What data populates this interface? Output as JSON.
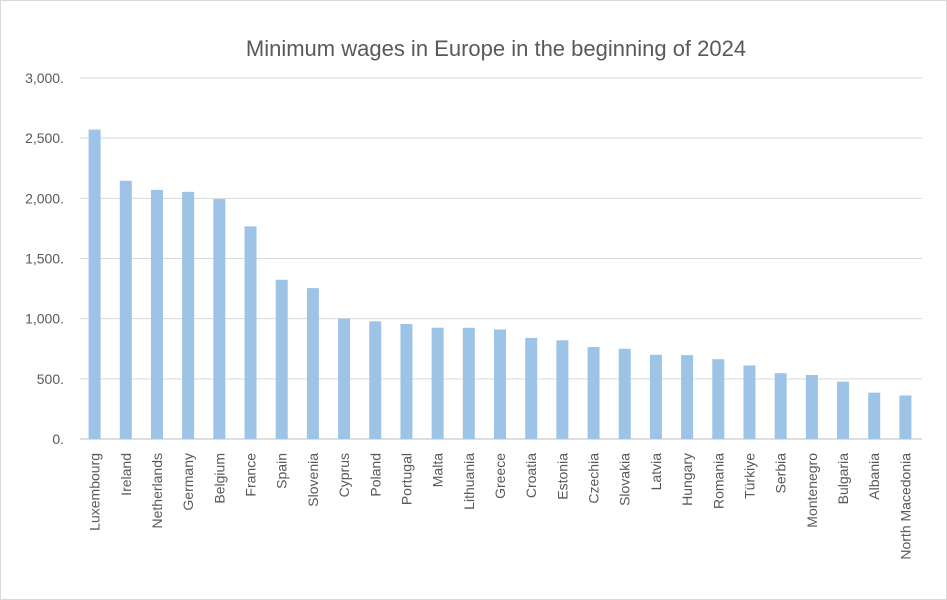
{
  "chart_data": {
    "type": "bar",
    "title": "Minimum wages in Europe in the beginning of 2024",
    "xlabel": "",
    "ylabel": "",
    "ylim": [
      0,
      3000
    ],
    "yticks": [
      0,
      500,
      1000,
      1500,
      2000,
      2500,
      3000
    ],
    "ytick_labels": [
      "0.",
      "500.",
      "1,000.",
      "1,500.",
      "2,000.",
      "2,500.",
      "3,000."
    ],
    "grid": true,
    "bar_color": "#9dc3e6",
    "categories": [
      "Luxembourg",
      "Ireland",
      "Netherlands",
      "Germany",
      "Belgium",
      "France",
      "Spain",
      "Slovenia",
      "Cyprus",
      "Poland",
      "Portugal",
      "Malta",
      "Lithuania",
      "Greece",
      "Croatia",
      "Estonia",
      "Czechia",
      "Slovakia",
      "Latvia",
      "Hungary",
      "Romania",
      "Türkiye",
      "Serbia",
      "Montenegro",
      "Bulgaria",
      "Albania",
      "North Macedonia"
    ],
    "values": [
      2571,
      2146,
      2070,
      2054,
      1994,
      1767,
      1323,
      1254,
      1000,
      978,
      956,
      925,
      924,
      910,
      840,
      820,
      764,
      750,
      700,
      697,
      663,
      611,
      547,
      532,
      477,
      385,
      362
    ]
  }
}
